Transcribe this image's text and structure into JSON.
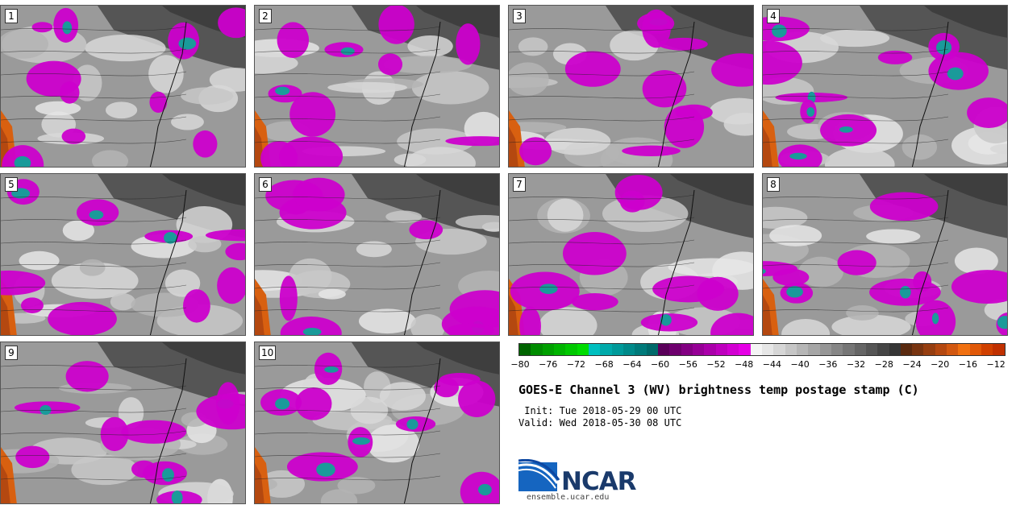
{
  "panels": [
    {
      "label": "1"
    },
    {
      "label": "2"
    },
    {
      "label": "3"
    },
    {
      "label": "4"
    },
    {
      "label": "5"
    },
    {
      "label": "6"
    },
    {
      "label": "7"
    },
    {
      "label": "8"
    },
    {
      "label": "9"
    },
    {
      "label": "10"
    }
  ],
  "colorbar": {
    "colors": [
      "#006400",
      "#008c00",
      "#00a000",
      "#00b400",
      "#00c800",
      "#00dc00",
      "#00bfbf",
      "#00aaaa",
      "#009a9a",
      "#008a8a",
      "#007a7a",
      "#006a6a",
      "#5a005a",
      "#6e006e",
      "#820082",
      "#960096",
      "#aa00aa",
      "#be00be",
      "#d200d2",
      "#e600e6",
      "#f4f4f4",
      "#e6e6e6",
      "#d6d6d6",
      "#c6c6c6",
      "#b6b6b6",
      "#a6a6a6",
      "#969696",
      "#868686",
      "#767676",
      "#666666",
      "#565656",
      "#464646",
      "#363636",
      "#5a2a10",
      "#783410",
      "#963e10",
      "#b44810",
      "#d25810",
      "#f07010",
      "#e05808",
      "#d04000",
      "#c03000"
    ],
    "ticks": [
      "−80",
      "−76",
      "−72",
      "−68",
      "−64",
      "−60",
      "−56",
      "−52",
      "−48",
      "−44",
      "−40",
      "−36",
      "−32",
      "−28",
      "−24",
      "−20",
      "−16",
      "−12"
    ]
  },
  "title": "GOES-E Channel 3 (WV) brightness temp postage stamp (C)",
  "init_line": " Init: Tue 2018-05-29 00 UTC",
  "valid_line": "Valid: Wed 2018-05-30 08 UTC",
  "logo_text": "NCAR",
  "url": "ensemble.ucar.edu"
}
